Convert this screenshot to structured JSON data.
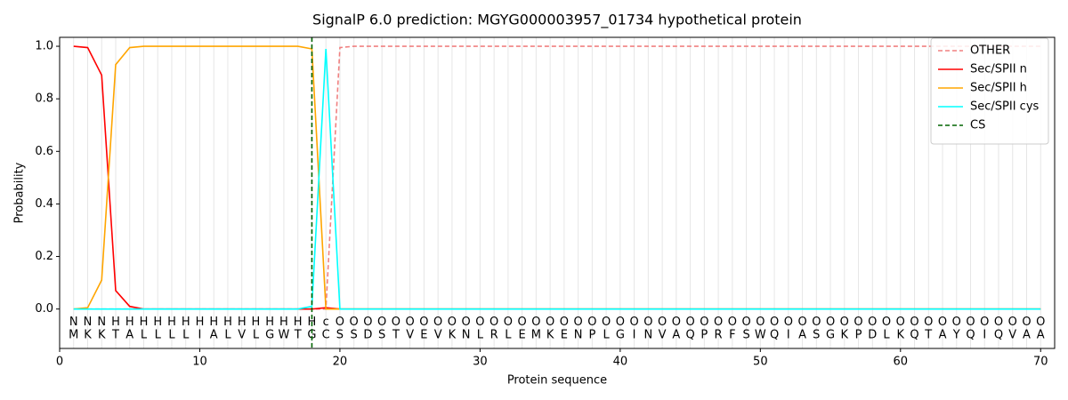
{
  "chart_data": {
    "type": "line",
    "title": "SignalP 6.0 prediction: MGYG000003957_01734 hypothetical protein",
    "xlabel": "Protein sequence",
    "ylabel": "Probability",
    "xlim": [
      0,
      71
    ],
    "ylim": [
      -0.15,
      1.034
    ],
    "xticks": [
      0,
      10,
      20,
      30,
      40,
      50,
      60,
      70
    ],
    "yticks": [
      {
        "value": 0,
        "label": "0.0"
      },
      0.2,
      0.4,
      0.6,
      0.8,
      {
        "value": 1,
        "label": "1.0"
      }
    ],
    "residue_grid": true,
    "legend": "upper right",
    "x": [
      1,
      2,
      3,
      4,
      5,
      6,
      7,
      8,
      9,
      10,
      11,
      12,
      13,
      14,
      15,
      16,
      17,
      18,
      19,
      20,
      21,
      22,
      23,
      24,
      25,
      26,
      27,
      28,
      29,
      30,
      31,
      32,
      33,
      34,
      35,
      36,
      37,
      38,
      39,
      40,
      41,
      42,
      43,
      44,
      45,
      46,
      47,
      48,
      49,
      50,
      51,
      52,
      53,
      54,
      55,
      56,
      57,
      58,
      59,
      60,
      61,
      62,
      63,
      64,
      65,
      66,
      67,
      68,
      69,
      70
    ],
    "sequence": [
      "M",
      "K",
      "K",
      "T",
      "A",
      "L",
      "L",
      "L",
      "L",
      "I",
      "A",
      "L",
      "V",
      "L",
      "G",
      "W",
      "T",
      "G",
      "C",
      "S",
      "S",
      "D",
      "S",
      "T",
      "V",
      "E",
      "V",
      "K",
      "N",
      "L",
      "R",
      "L",
      "E",
      "M",
      "K",
      "E",
      "N",
      "P",
      "L",
      "G",
      "I",
      "N",
      "V",
      "A",
      "Q",
      "P",
      "R",
      "F",
      "S",
      "W",
      "Q",
      "I",
      "A",
      "S",
      "G",
      "K",
      "P",
      "D",
      "L",
      "K",
      "Q",
      "T",
      "A",
      "Y",
      "Q",
      "I",
      "Q",
      "V",
      "A",
      "A"
    ],
    "regions": [
      "N",
      "N",
      "N",
      "H",
      "H",
      "H",
      "H",
      "H",
      "H",
      "H",
      "H",
      "H",
      "H",
      "H",
      "H",
      "H",
      "H",
      "H",
      "c",
      "O",
      "O",
      "O",
      "O",
      "O",
      "O",
      "O",
      "O",
      "O",
      "O",
      "O",
      "O",
      "O",
      "O",
      "O",
      "O",
      "O",
      "O",
      "O",
      "O",
      "O",
      "O",
      "O",
      "O",
      "O",
      "O",
      "O",
      "O",
      "O",
      "O",
      "O",
      "O",
      "O",
      "O",
      "O",
      "O",
      "O",
      "O",
      "O",
      "O",
      "O",
      "O",
      "O",
      "O",
      "O",
      "O",
      "O",
      "O",
      "O",
      "O",
      "O"
    ],
    "region_colors": {
      "N": "#ff0000",
      "H": "#ffa500",
      "c": "#00e5ee",
      "O": "#808080"
    },
    "series": [
      {
        "name": "OTHER",
        "color": "#f08080",
        "dash": true,
        "values": [
          0,
          0,
          0,
          0,
          0,
          0,
          0,
          0,
          0,
          0,
          0,
          0,
          0,
          0,
          0,
          0,
          0,
          0,
          0,
          0.995,
          1,
          1,
          1,
          1,
          1,
          1,
          1,
          1,
          1,
          1,
          1,
          1,
          1,
          1,
          1,
          1,
          1,
          1,
          1,
          1,
          1,
          1,
          1,
          1,
          1,
          1,
          1,
          1,
          1,
          1,
          1,
          1,
          1,
          1,
          1,
          1,
          1,
          1,
          1,
          1,
          1,
          1,
          1,
          1,
          1,
          1,
          1,
          1,
          1,
          1
        ]
      },
      {
        "name": "Sec/SPII n",
        "color": "#ff0000",
        "dash": false,
        "values": [
          1,
          0.995,
          0.89,
          0.07,
          0.01,
          0,
          0,
          0,
          0,
          0,
          0,
          0,
          0,
          0,
          0,
          0,
          0,
          0,
          0.005,
          0,
          0,
          0,
          0,
          0,
          0,
          0,
          0,
          0,
          0,
          0,
          0,
          0,
          0,
          0,
          0,
          0,
          0,
          0,
          0,
          0,
          0,
          0,
          0,
          0,
          0,
          0,
          0,
          0,
          0,
          0,
          0,
          0,
          0,
          0,
          0,
          0,
          0,
          0,
          0,
          0,
          0,
          0,
          0,
          0,
          0,
          0,
          0,
          0,
          0,
          0
        ]
      },
      {
        "name": "Sec/SPII h",
        "color": "#ffa500",
        "dash": false,
        "values": [
          0,
          0.005,
          0.11,
          0.93,
          0.995,
          1,
          1,
          1,
          1,
          1,
          1,
          1,
          1,
          1,
          1,
          1,
          1,
          0.99,
          0,
          0,
          0,
          0,
          0,
          0,
          0,
          0,
          0,
          0,
          0,
          0,
          0,
          0,
          0,
          0,
          0,
          0,
          0,
          0,
          0,
          0,
          0,
          0,
          0,
          0,
          0,
          0,
          0,
          0,
          0,
          0,
          0,
          0,
          0,
          0,
          0,
          0,
          0,
          0,
          0,
          0,
          0,
          0,
          0,
          0,
          0,
          0,
          0,
          0,
          0,
          0
        ]
      },
      {
        "name": "Sec/SPII cys",
        "color": "#00ffff",
        "dash": false,
        "values": [
          0,
          0,
          0,
          0,
          0,
          0,
          0,
          0,
          0,
          0,
          0,
          0,
          0,
          0,
          0,
          0,
          0,
          0.01,
          0.99,
          0,
          0,
          0,
          0,
          0,
          0,
          0,
          0,
          0,
          0,
          0,
          0,
          0,
          0,
          0,
          0,
          0,
          0,
          0,
          0,
          0,
          0,
          0,
          0,
          0,
          0,
          0,
          0,
          0,
          0,
          0,
          0,
          0,
          0,
          0,
          0,
          0,
          0,
          0,
          0,
          0,
          0,
          0,
          0,
          0,
          0,
          0,
          0,
          0,
          0,
          0
        ]
      }
    ],
    "vlines": [
      {
        "name": "CS",
        "x": 18,
        "color": "#006400"
      }
    ]
  }
}
